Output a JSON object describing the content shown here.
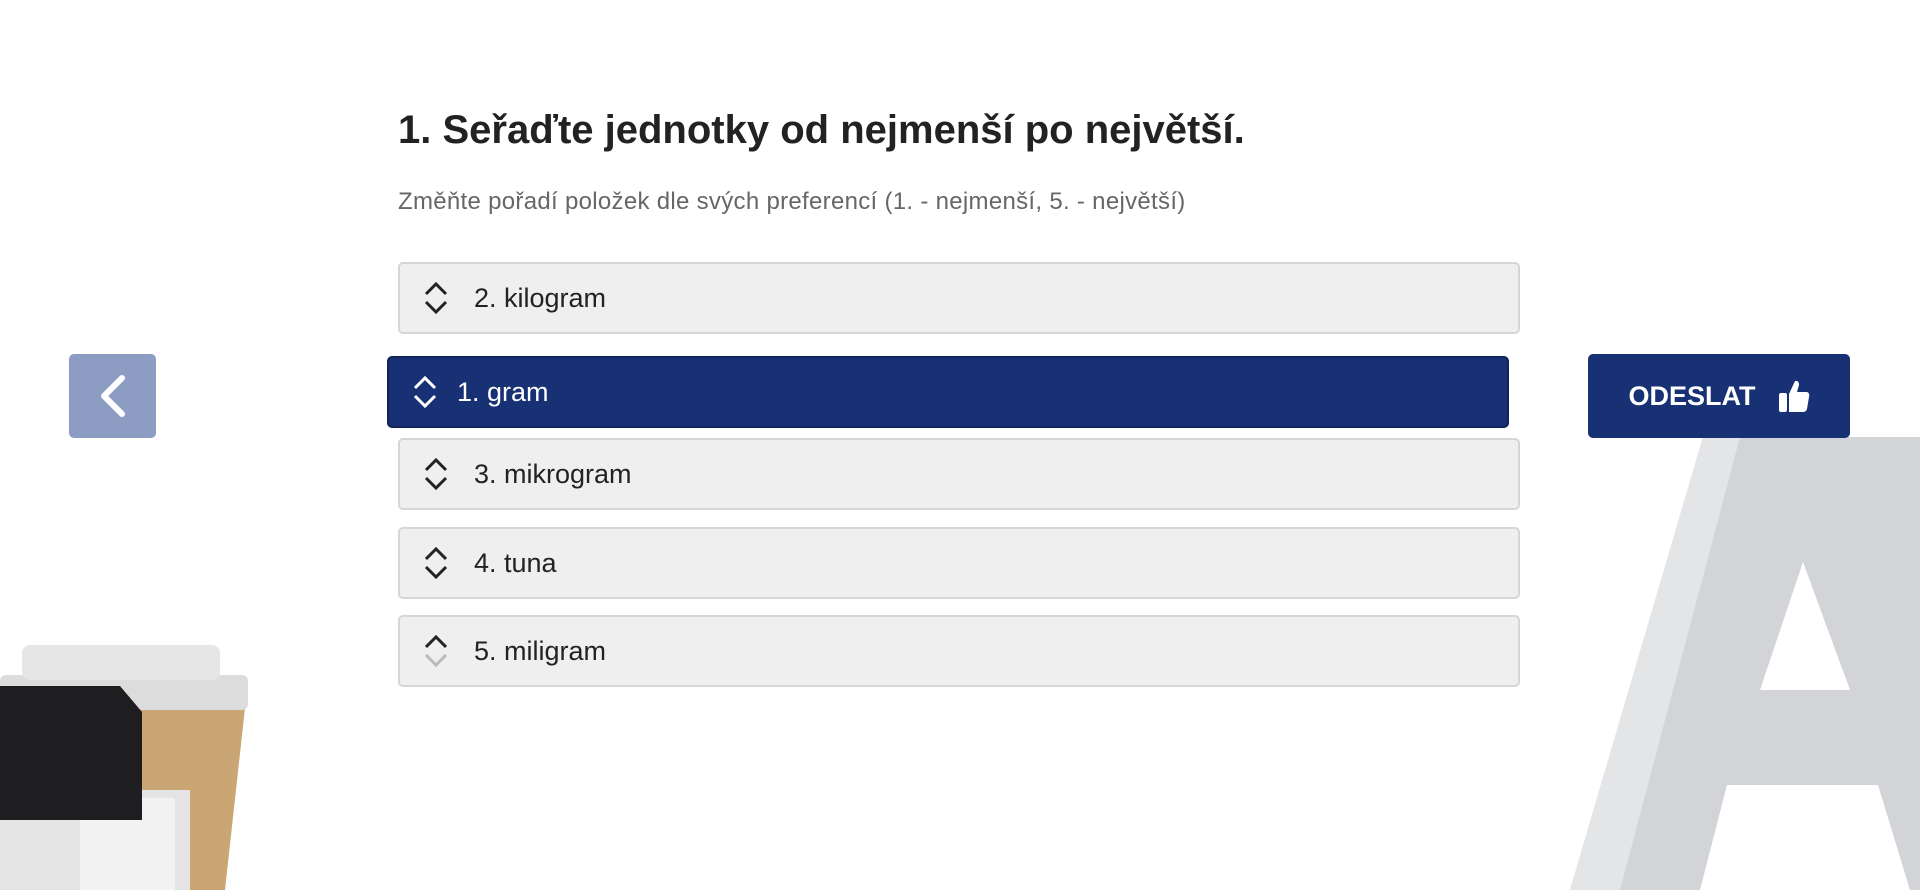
{
  "question": {
    "title": "1. Seřaďte jednotky od nejmenší po největší.",
    "instruction": "Změňte pořadí položek dle svých preferencí (1. - nejmenší, 5. - největší)"
  },
  "items": [
    {
      "label": "2. kilogram",
      "state": "normal"
    },
    {
      "label": "1. gram",
      "state": "dragging"
    },
    {
      "label": "3. mikrogram",
      "state": "normal"
    },
    {
      "label": "4. tuna",
      "state": "normal"
    },
    {
      "label": "5. miligram",
      "state": "last"
    }
  ],
  "navigation": {
    "back_icon": "chevron-left-icon",
    "submit_label": "ODESLAT",
    "submit_icon": "thumbs-up-icon"
  },
  "colors": {
    "primary": "#183074",
    "back_button": "#8c9cc3",
    "item_bg": "#efefef"
  }
}
